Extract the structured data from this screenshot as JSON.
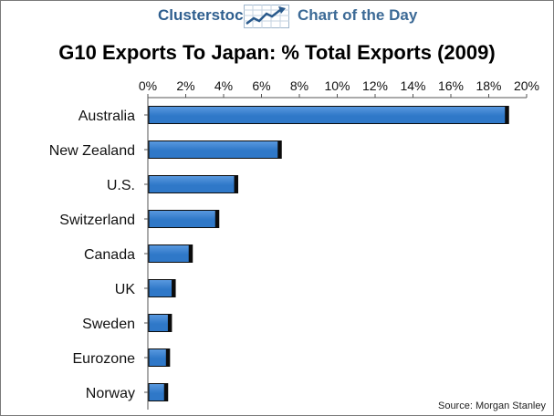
{
  "header": {
    "brand": "Clusterstock",
    "tagline": "Chart of the Day",
    "logo_icon": "trend-chart-icon"
  },
  "source": "Source: Morgan Stanley",
  "colors": {
    "bar_fill": "#2f78c8",
    "bar_fill_light": "#5b9ae0",
    "bar_edge": "#0c0c0c",
    "brand": "#2f5f8f"
  },
  "chart_data": {
    "type": "bar",
    "orientation": "horizontal",
    "title": "G10 Exports To Japan: % Total Exports (2009)",
    "categories": [
      "Australia",
      "New Zealand",
      "U.S.",
      "Switzerland",
      "Canada",
      "UK",
      "Sweden",
      "Eurozone",
      "Norway"
    ],
    "values": [
      19.0,
      7.0,
      4.7,
      3.7,
      2.3,
      1.4,
      1.2,
      1.1,
      1.0
    ],
    "unit": "%",
    "xlim": [
      0,
      20
    ],
    "ticks": [
      "0%",
      "2%",
      "4%",
      "6%",
      "8%",
      "10%",
      "12%",
      "14%",
      "16%",
      "18%",
      "20%"
    ],
    "grid": false,
    "axis_position": "top"
  }
}
